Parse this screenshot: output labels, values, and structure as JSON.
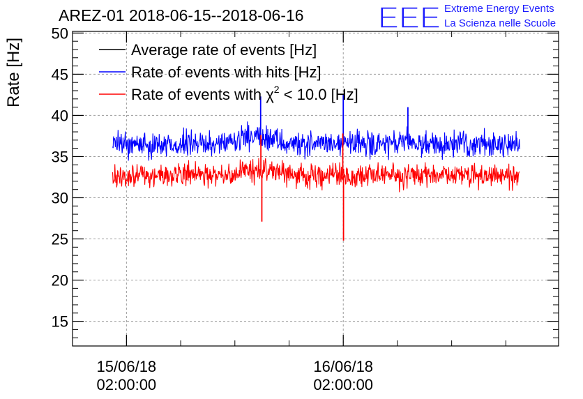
{
  "chart_data": {
    "type": "line",
    "title": "AREZ-01 2018-06-15--2018-06-16",
    "xlabel": "",
    "ylabel": "Rate [Hz]",
    "ylim": [
      12,
      50.2
    ],
    "yticks": [
      15,
      20,
      25,
      30,
      35,
      40,
      45,
      50
    ],
    "xlim": [
      0,
      1
    ],
    "xticks": [
      {
        "pos": 0.111,
        "date": "15/06/18",
        "time": "02:00:00"
      },
      {
        "pos": 0.557,
        "date": "16/06/18",
        "time": "02:00:00"
      }
    ],
    "grid": true,
    "legend_position": "top-left",
    "series": [
      {
        "name": "Average rate of events [Hz]",
        "color": "#000000",
        "legend_label": "Average rate of events [Hz]",
        "x_range": [
          0.0825,
          0.92
        ],
        "mean": 0,
        "noise": 0,
        "visible": false,
        "spikes": []
      },
      {
        "name": "Rate of events with hits [Hz]",
        "color": "#0000ff",
        "legend_label": "Rate of events with hits [Hz]",
        "x_range": [
          0.0825,
          0.92
        ],
        "mean": 36.5,
        "noise": 1.1,
        "visible": true,
        "spikes": [
          {
            "x": 0.387,
            "value": 42.3
          },
          {
            "x": 0.557,
            "value": 42.6
          },
          {
            "x": 0.69,
            "value": 41.0
          }
        ]
      },
      {
        "name": "Rate of events with χ² < 10.0 [Hz]",
        "color": "#ff0000",
        "legend_prefix": "Rate of events with ",
        "legend_symbol": "χ",
        "legend_sup": "2",
        "legend_suffix": " < 10.0 [Hz]",
        "x_range": [
          0.0825,
          0.92
        ],
        "mean": 32.7,
        "noise": 1.0,
        "visible": true,
        "spikes": [
          {
            "x": 0.3895,
            "value": 27.1
          },
          {
            "x": 0.3875,
            "value": 37.6
          },
          {
            "x": 0.5575,
            "value": 24.8
          },
          {
            "x": 0.556,
            "value": 37.8
          }
        ]
      }
    ]
  },
  "logo": {
    "letters": "EEE",
    "line1": "Extreme Energy Events",
    "line2": "La Scienza nelle Scuole",
    "color": "#1a1aff"
  }
}
